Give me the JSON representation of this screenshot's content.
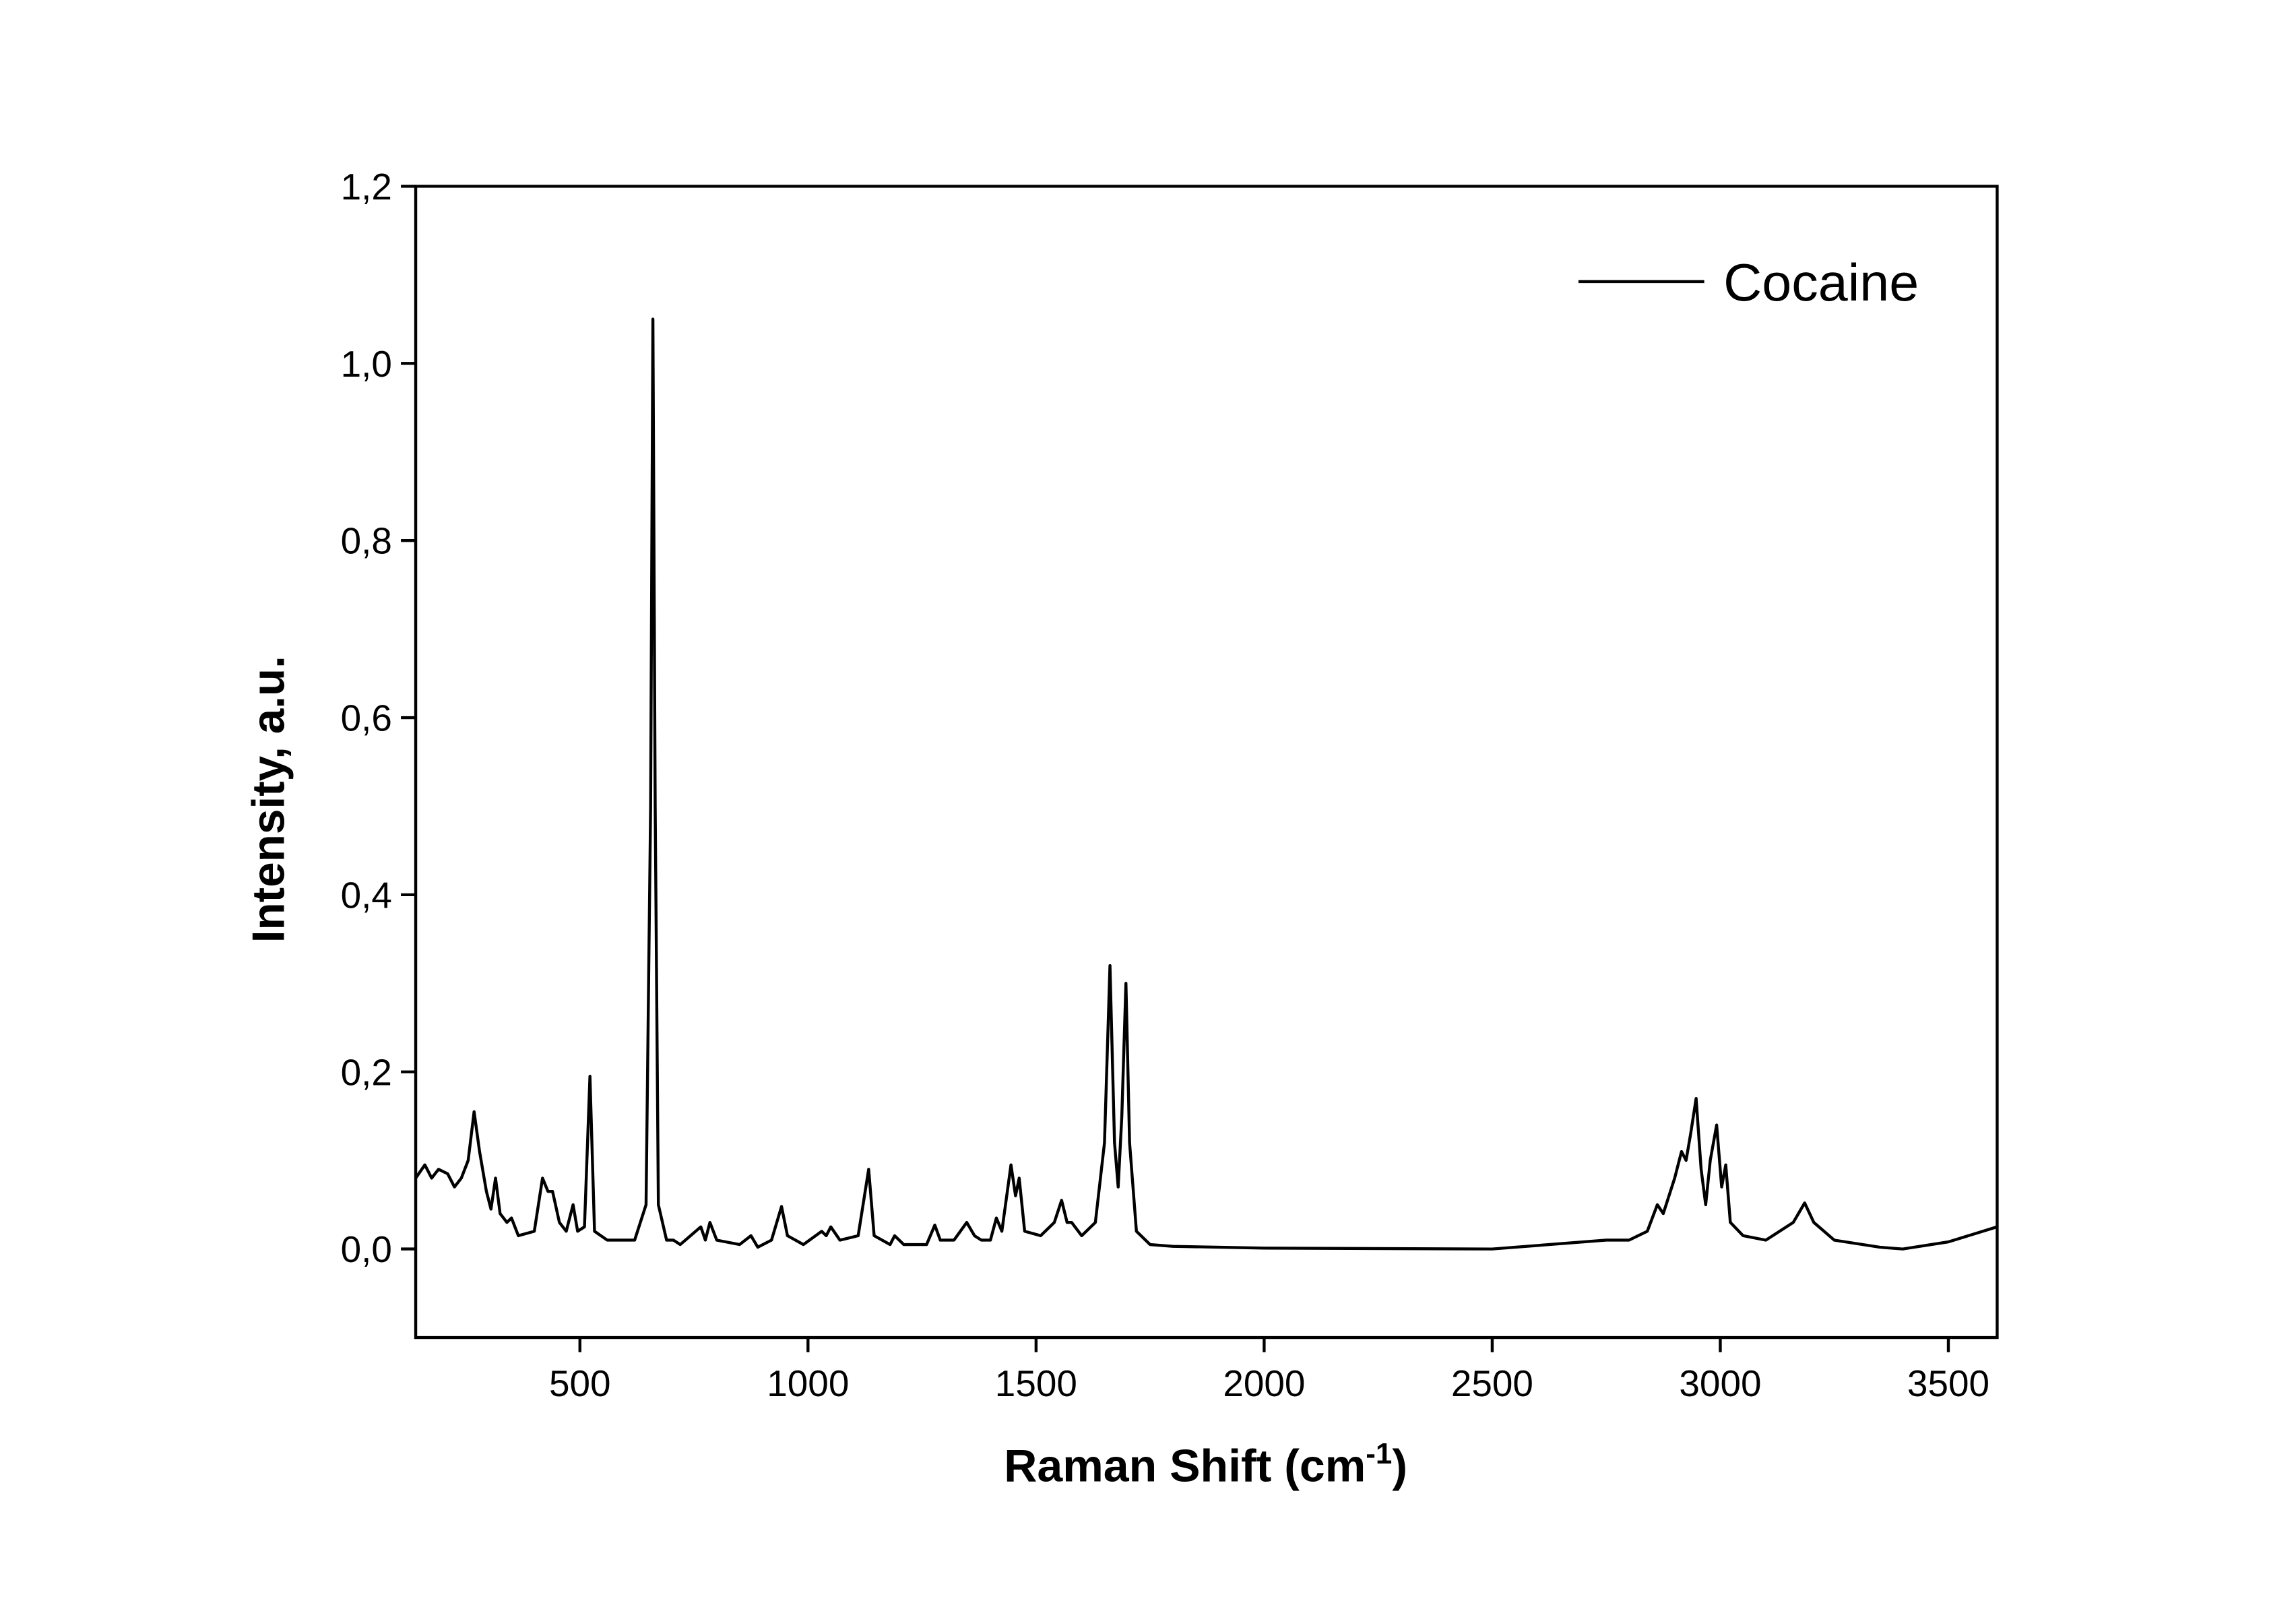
{
  "chart_data": {
    "type": "line",
    "x_label_parts": [
      "Raman Shift (cm",
      "-1",
      ")"
    ],
    "y_label": "Intensity, a.u.",
    "xlim": [
      140,
      3607
    ],
    "ylim": [
      -0.1,
      1.2
    ],
    "xticks": [
      500,
      1000,
      1500,
      2000,
      2500,
      3000,
      3500
    ],
    "yticks": [
      {
        "value": 0,
        "label": "0,0"
      },
      {
        "value": 0.2,
        "label": "0,2"
      },
      {
        "value": 0.4,
        "label": "0,4"
      },
      {
        "value": 0.6,
        "label": "0,6"
      },
      {
        "value": 0.8,
        "label": "0,8"
      },
      {
        "value": 1.0,
        "label": "1,0"
      },
      {
        "value": 1.2,
        "label": "1,2"
      }
    ],
    "legend": "upper right",
    "series": [
      {
        "name": "Cocaine",
        "color": "#000000",
        "x": [
          140,
          160,
          175,
          190,
          210,
          225,
          240,
          255,
          268,
          280,
          295,
          305,
          315,
          325,
          340,
          350,
          365,
          400,
          418,
          430,
          440,
          455,
          470,
          485,
          495,
          510,
          522,
          532,
          560,
          620,
          645,
          655,
          660,
          665,
          672,
          690,
          705,
          720,
          765,
          775,
          785,
          800,
          850,
          875,
          890,
          920,
          942,
          955,
          990,
          1030,
          1040,
          1050,
          1070,
          1110,
          1133,
          1145,
          1180,
          1190,
          1210,
          1260,
          1278,
          1290,
          1320,
          1348,
          1365,
          1380,
          1400,
          1413,
          1425,
          1445,
          1455,
          1463,
          1475,
          1510,
          1540,
          1556,
          1568,
          1578,
          1600,
          1630,
          1650,
          1662,
          1672,
          1680,
          1688,
          1697,
          1705,
          1720,
          1750,
          1800,
          2000,
          2500,
          2700,
          2750,
          2800,
          2840,
          2862,
          2875,
          2900,
          2915,
          2925,
          2935,
          2947,
          2958,
          2968,
          2978,
          2992,
          3003,
          3012,
          3022,
          3050,
          3100,
          3160,
          3185,
          3205,
          3250,
          3350,
          3400,
          3500,
          3607
        ],
        "values": [
          0.08,
          0.095,
          0.08,
          0.09,
          0.085,
          0.07,
          0.08,
          0.1,
          0.155,
          0.11,
          0.065,
          0.045,
          0.08,
          0.04,
          0.03,
          0.035,
          0.015,
          0.02,
          0.08,
          0.065,
          0.065,
          0.03,
          0.02,
          0.05,
          0.02,
          0.025,
          0.195,
          0.02,
          0.01,
          0.01,
          0.05,
          0.5,
          1.05,
          0.5,
          0.05,
          0.01,
          0.01,
          0.005,
          0.025,
          0.01,
          0.03,
          0.01,
          0.005,
          0.015,
          0.002,
          0.01,
          0.048,
          0.015,
          0.005,
          0.02,
          0.015,
          0.025,
          0.01,
          0.015,
          0.09,
          0.015,
          0.005,
          0.015,
          0.005,
          0.005,
          0.027,
          0.01,
          0.01,
          0.03,
          0.015,
          0.01,
          0.01,
          0.035,
          0.02,
          0.095,
          0.06,
          0.08,
          0.02,
          0.015,
          0.03,
          0.055,
          0.03,
          0.03,
          0.015,
          0.03,
          0.12,
          0.32,
          0.12,
          0.07,
          0.15,
          0.3,
          0.12,
          0.02,
          0.005,
          0.003,
          0.001,
          0,
          0.008,
          0.01,
          0.01,
          0.02,
          0.05,
          0.04,
          0.08,
          0.11,
          0.1,
          0.13,
          0.17,
          0.09,
          0.05,
          0.1,
          0.14,
          0.07,
          0.095,
          0.03,
          0.015,
          0.01,
          0.03,
          0.052,
          0.03,
          0.01,
          0.002,
          0,
          0.008,
          0.025
        ]
      }
    ]
  }
}
